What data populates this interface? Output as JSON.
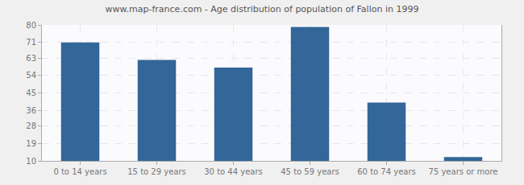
{
  "chart_data": {
    "type": "bar",
    "title": "www.map-france.com - Age distribution of population of Fallon in 1999",
    "categories": [
      "0 to 14 years",
      "15 to 29 years",
      "30 to 44 years",
      "45 to 59 years",
      "60 to 74 years",
      "75 years or more"
    ],
    "values": [
      71,
      62,
      58,
      79,
      40,
      12
    ],
    "color": "#336699",
    "ylim": [
      10,
      80
    ],
    "yticks": [
      10,
      19,
      28,
      36,
      45,
      54,
      63,
      71,
      80
    ],
    "grid": true
  }
}
